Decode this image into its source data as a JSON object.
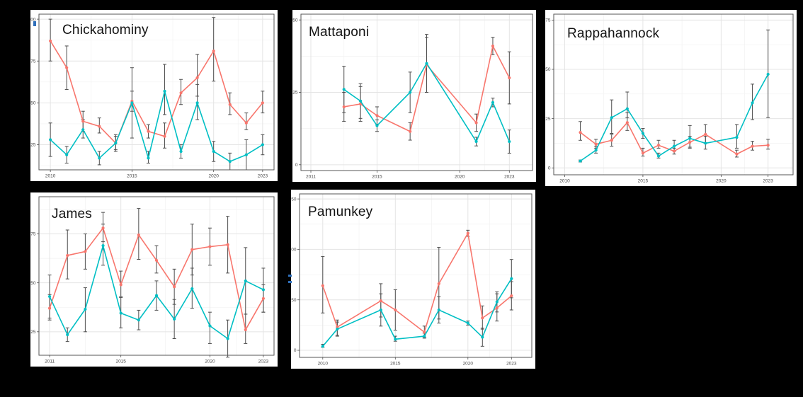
{
  "colors": {
    "background": "#000000",
    "panel_background": "#ffffff",
    "series_red": "#F8766D",
    "series_teal": "#00BFC4",
    "errorbar": "#4d4d4d",
    "panel_border": "#565656",
    "grid_major": "#e4e4e4",
    "grid_minor": "#f2f2f2",
    "tick_label": "#454545",
    "title": "#121212",
    "artifact_blue": "#2f6fba"
  },
  "chart_data": [
    {
      "type": "line",
      "title": "Chickahominy",
      "x": [
        2010,
        2011,
        2012,
        2013,
        2014,
        2015,
        2016,
        2017,
        2018,
        2019,
        2020,
        2021,
        2022,
        2023
      ],
      "series": [
        {
          "name": "red",
          "color": "#F8766D",
          "values": [
            87,
            71,
            39,
            36,
            26,
            51,
            33,
            30,
            56,
            65,
            81,
            49,
            38,
            50
          ],
          "err_lo": [
            75,
            58,
            33,
            32,
            22,
            45,
            29,
            23,
            49,
            54,
            63,
            43,
            34,
            44
          ],
          "err_hi": [
            100,
            84,
            45,
            41,
            30,
            57,
            37,
            38,
            64,
            79,
            101,
            56,
            44,
            57
          ]
        },
        {
          "name": "teal",
          "color": "#00BFC4",
          "values": [
            28,
            19,
            34,
            17,
            26,
            50,
            17,
            57,
            21,
            50,
            21,
            15,
            19,
            25
          ],
          "err_lo": [
            18,
            14,
            29,
            13,
            21,
            29,
            14,
            43,
            17,
            40,
            15,
            10,
            10,
            19
          ],
          "err_hi": [
            38,
            24,
            40,
            21,
            31,
            71,
            21,
            73,
            25,
            61,
            27,
            20,
            28,
            31
          ]
        }
      ],
      "xticks": [
        2010,
        2015,
        2020,
        2023
      ],
      "yticks": [
        25,
        50,
        75,
        100
      ],
      "xlim": [
        2009.3,
        2023.7
      ],
      "ylim": [
        10,
        103
      ],
      "grid": true,
      "legend": "none"
    },
    {
      "type": "line",
      "title": "Mattaponi",
      "x": [
        2013,
        2014,
        2015,
        2017,
        2018,
        2021,
        2022,
        2023
      ],
      "series": [
        {
          "name": "red",
          "color": "#F8766D",
          "values": [
            20,
            21,
            17,
            11.5,
            34.5,
            14.5,
            41,
            30
          ],
          "err_lo": [
            15,
            15,
            14,
            8.5,
            25,
            11.5,
            38,
            21
          ],
          "err_hi": [
            25,
            27,
            20,
            14.5,
            44,
            17.5,
            44,
            39
          ]
        },
        {
          "name": "teal",
          "color": "#00BFC4",
          "values": [
            26,
            22,
            13.5,
            25,
            35,
            8,
            21.5,
            8
          ],
          "err_lo": [
            18,
            16,
            11.5,
            18,
            25,
            6.5,
            20,
            4
          ],
          "err_hi": [
            34,
            28,
            15.5,
            32,
            45,
            9.5,
            23,
            12
          ]
        }
      ],
      "xticks": [
        2011,
        2015,
        2020,
        2023
      ],
      "yticks": [
        0,
        25,
        50
      ],
      "xlim": [
        2010.4,
        2024.4
      ],
      "ylim": [
        -2,
        52
      ],
      "grid": true,
      "legend": "none"
    },
    {
      "type": "line",
      "title": "Rappahannock",
      "x": [
        2011,
        2012,
        2013,
        2014,
        2015,
        2016,
        2017,
        2018,
        2019,
        2021,
        2022,
        2023
      ],
      "series": [
        {
          "name": "red",
          "color": "#F8766D",
          "values": [
            18,
            12,
            14,
            23,
            7.5,
            11.5,
            8.5,
            13,
            17,
            7,
            11,
            11.5
          ],
          "err_lo": [
            14,
            10,
            11,
            19,
            6,
            10,
            7,
            10,
            12.5,
            5.5,
            9,
            9.5
          ],
          "err_hi": [
            23.5,
            14.5,
            17,
            28,
            10,
            14,
            10,
            16,
            22,
            9,
            13.5,
            14.5
          ]
        },
        {
          "name": "teal",
          "color": "#00BFC4",
          "values": [
            3.5,
            9,
            25.5,
            30,
            17.5,
            6,
            11,
            15,
            12.5,
            15.5,
            33,
            47.5
          ],
          "err_lo": [
            3,
            7.5,
            17.5,
            25.5,
            15,
            5,
            8.5,
            10.5,
            9.5,
            10,
            24.5,
            25.5
          ],
          "err_hi": [
            4,
            11,
            34.5,
            38.5,
            20,
            7.5,
            14,
            21.5,
            16,
            22,
            42.5,
            70
          ]
        }
      ],
      "xticks": [
        2010,
        2015,
        2020,
        2023
      ],
      "yticks": [
        0,
        25,
        50,
        75
      ],
      "xlim": [
        2009.3,
        2024.6
      ],
      "ylim": [
        -3.5,
        78
      ],
      "grid": true,
      "legend": "none"
    },
    {
      "type": "line",
      "title": "James",
      "x": [
        2011,
        2012,
        2013,
        2014,
        2015,
        2016,
        2017,
        2018,
        2019,
        2020,
        2021,
        2022,
        2023
      ],
      "series": [
        {
          "name": "red",
          "color": "#F8766D",
          "values": [
            37,
            64,
            66,
            78,
            49,
            74.5,
            61.5,
            48,
            67,
            68.5,
            69.5,
            26,
            42
          ],
          "err_lo": [
            31,
            52,
            57,
            71,
            43,
            62,
            55,
            39,
            54,
            59,
            55,
            19,
            35
          ],
          "err_hi": [
            44,
            77,
            75,
            86,
            56,
            88,
            69,
            57,
            80,
            78,
            84,
            34,
            49
          ]
        },
        {
          "name": "teal",
          "color": "#00BFC4",
          "values": [
            43,
            23.5,
            36.5,
            69,
            34.5,
            31,
            43.5,
            31.5,
            47,
            28,
            21.5,
            51,
            46.5
          ],
          "err_lo": [
            32,
            20,
            25,
            59,
            27,
            26,
            36,
            21.5,
            37,
            19,
            12,
            34,
            35
          ],
          "err_hi": [
            54,
            27,
            47.5,
            80,
            42.5,
            36,
            51,
            41.5,
            57.5,
            35,
            31,
            68,
            57.5
          ]
        }
      ],
      "xticks": [
        2011,
        2015,
        2020,
        2023
      ],
      "yticks": [
        25,
        50,
        75
      ],
      "xlim": [
        2010.4,
        2023.6
      ],
      "ylim": [
        13,
        94
      ],
      "grid": true,
      "legend": "none"
    },
    {
      "type": "line",
      "title": "Pamunkey",
      "x": [
        2010,
        2011,
        2014,
        2015,
        2017,
        2018,
        2020,
        2021,
        2022,
        2023
      ],
      "series": [
        {
          "name": "red",
          "color": "#F8766D",
          "values": [
            64,
            23,
            49,
            40,
            18,
            66,
            116,
            32,
            42,
            54
          ],
          "err_lo": [
            37,
            15,
            33,
            20,
            13,
            31,
            113,
            21,
            29,
            40
          ],
          "err_hi": [
            93,
            30,
            66,
            60,
            24,
            102,
            119,
            44,
            56,
            68
          ]
        },
        {
          "name": "teal",
          "color": "#00BFC4",
          "values": [
            4,
            21,
            40,
            11,
            14,
            40,
            27,
            13,
            48,
            71
          ],
          "err_lo": [
            3,
            14,
            24,
            9,
            12,
            27,
            25,
            4,
            38,
            52
          ],
          "err_hi": [
            6,
            28,
            56,
            14,
            17,
            53,
            29,
            22,
            58,
            90
          ]
        }
      ],
      "xticks": [
        2010,
        2015,
        2020,
        2023
      ],
      "yticks": [
        0,
        50,
        100,
        150
      ],
      "xlim": [
        2008.4,
        2024.4
      ],
      "ylim": [
        -7,
        155
      ],
      "grid": true,
      "legend": "none"
    }
  ]
}
